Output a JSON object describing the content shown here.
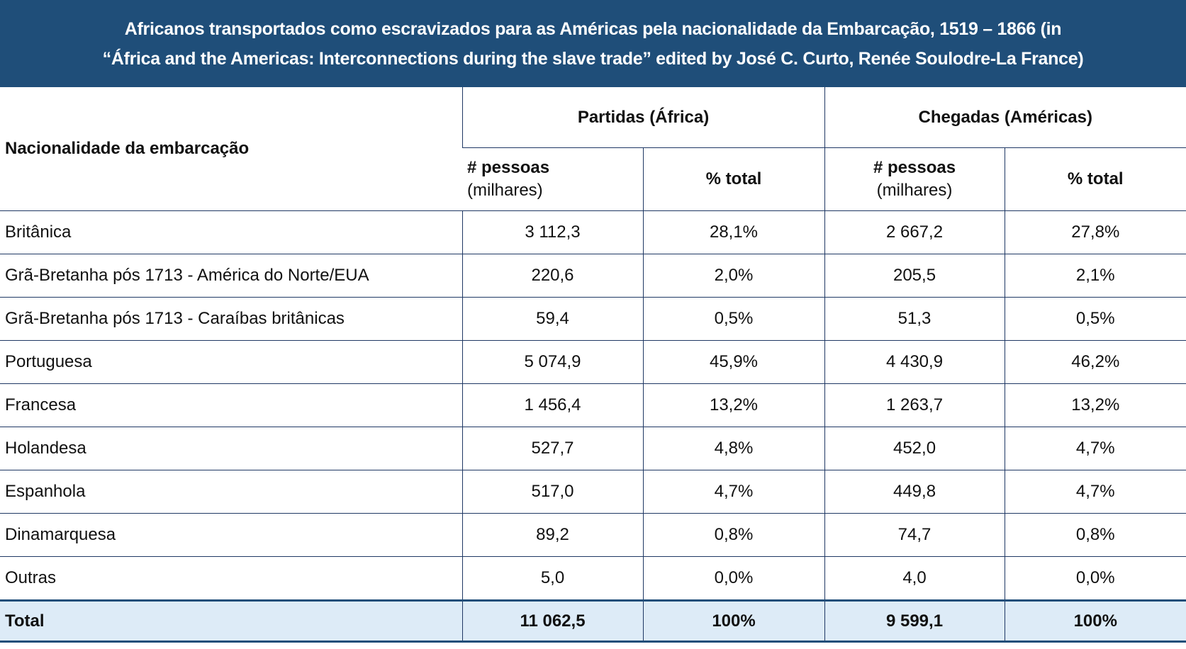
{
  "title": {
    "line1": "Africanos transportados como escravizados para as Américas pela nacionalidade da Embarcação, 1519 – 1866 (in",
    "line2": "“África and the Americas: Interconnections during the slave trade” edited by José C. Curto, Renée Soulodre-La France)"
  },
  "header": {
    "nationality": "Nacionalidade da embarcação",
    "departures": "Partidas (África)",
    "arrivals": "Chegadas (Américas)",
    "people": "# pessoas",
    "thousands": "(milhares)",
    "pct": "% total"
  },
  "rows": [
    {
      "name": "Britânica",
      "dep": "3 112,3",
      "dep_pct": "28,1%",
      "arr": "2 667,2",
      "arr_pct": "27,8%"
    },
    {
      "name": "Grã-Bretanha pós 1713 - América do Norte/EUA",
      "dep": "220,6",
      "dep_pct": "2,0%",
      "arr": "205,5",
      "arr_pct": "2,1%"
    },
    {
      "name": "Grã-Bretanha pós 1713 - Caraíbas britânicas",
      "dep": "59,4",
      "dep_pct": "0,5%",
      "arr": "51,3",
      "arr_pct": "0,5%"
    },
    {
      "name": "Portuguesa",
      "dep": "5 074,9",
      "dep_pct": "45,9%",
      "arr": "4 430,9",
      "arr_pct": "46,2%"
    },
    {
      "name": "Francesa",
      "dep": "1 456,4",
      "dep_pct": "13,2%",
      "arr": "1 263,7",
      "arr_pct": "13,2%"
    },
    {
      "name": "Holandesa",
      "dep": "527,7",
      "dep_pct": "4,8%",
      "arr": "452,0",
      "arr_pct": "4,7%"
    },
    {
      "name": "Espanhola",
      "dep": "517,0",
      "dep_pct": "4,7%",
      "arr": "449,8",
      "arr_pct": "4,7%"
    },
    {
      "name": "Dinamarquesa",
      "dep": "89,2",
      "dep_pct": "0,8%",
      "arr": "74,7",
      "arr_pct": "0,8%"
    },
    {
      "name": "Outras",
      "dep": "5,0",
      "dep_pct": "0,0%",
      "arr": "4,0",
      "arr_pct": "0,0%"
    }
  ],
  "total": {
    "name": "Total",
    "dep": "11 062,5",
    "dep_pct": "100%",
    "arr": "9 599,1",
    "arr_pct": "100%"
  }
}
